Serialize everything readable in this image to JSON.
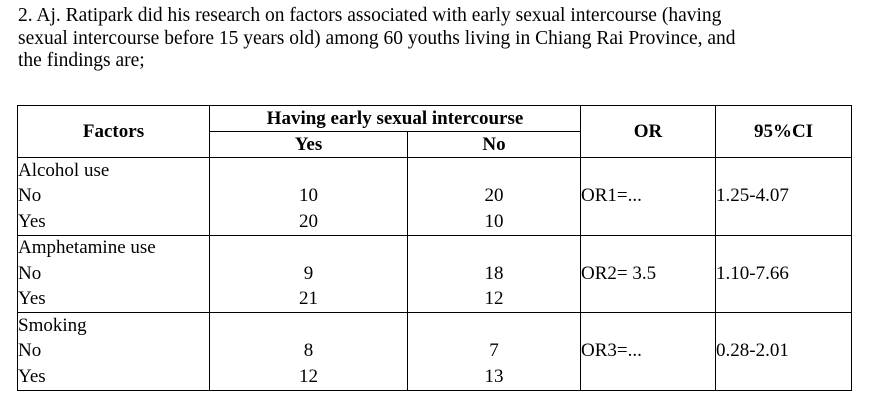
{
  "question": {
    "line1": "2. Aj. Ratipark did his research on factors associated with early sexual intercourse (having",
    "line2": "sexual intercourse before 15 years old) among 60 youths living in Chiang Rai Province, and",
    "line3": "the findings are;"
  },
  "table": {
    "headers": {
      "factors": "Factors",
      "group": "Having early sexual intercourse",
      "yes": "Yes",
      "no": "No",
      "or": "OR",
      "ci": "95%CI"
    },
    "groups": [
      {
        "name": "Alcohol use",
        "rows": [
          {
            "label": "No",
            "yes": "10",
            "no": "20",
            "or": "OR1=...",
            "ci": "1.25-4.07"
          },
          {
            "label": "Yes",
            "yes": "20",
            "no": "10",
            "or": "",
            "ci": ""
          }
        ]
      },
      {
        "name": "Amphetamine use",
        "rows": [
          {
            "label": "No",
            "yes": "9",
            "no": "18",
            "or": "OR2= 3.5",
            "ci": "1.10-7.66"
          },
          {
            "label": "Yes",
            "yes": "21",
            "no": "12",
            "or": "",
            "ci": ""
          }
        ]
      },
      {
        "name": "Smoking",
        "rows": [
          {
            "label": "No",
            "yes": "8",
            "no": "7",
            "or": "OR3=...",
            "ci": "0.28-2.01"
          },
          {
            "label": "Yes",
            "yes": "12",
            "no": "13",
            "or": "",
            "ci": ""
          }
        ]
      }
    ]
  }
}
